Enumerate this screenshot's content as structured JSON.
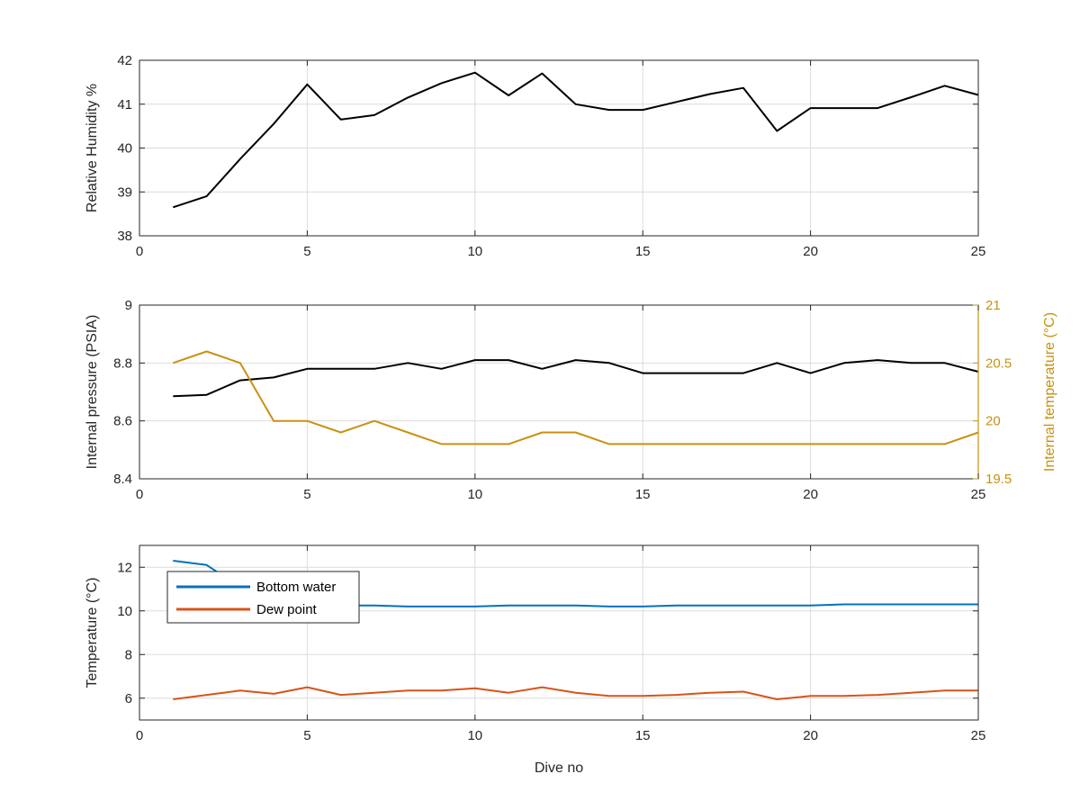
{
  "chart_data": [
    {
      "type": "line",
      "ylabel": "Relative Humidity %",
      "xlim": [
        0,
        25
      ],
      "ylim": [
        38,
        42
      ],
      "x_ticks": [
        "0",
        "5",
        "10",
        "15",
        "20",
        "25"
      ],
      "y_ticks": [
        "38",
        "39",
        "40",
        "41",
        "42"
      ],
      "grid": true,
      "series": [
        {
          "color": "#000000",
          "x": [
            1,
            2,
            3,
            4,
            5,
            6,
            7,
            8,
            9,
            10,
            11,
            12,
            13,
            14,
            15,
            16,
            17,
            18,
            19,
            20,
            21,
            22,
            23,
            24,
            25
          ],
          "values": [
            38.65,
            38.9,
            39.75,
            40.55,
            41.45,
            40.65,
            40.75,
            41.15,
            41.48,
            41.72,
            41.2,
            41.7,
            41.0,
            40.87,
            40.87,
            41.05,
            41.23,
            41.37,
            40.39,
            40.91,
            40.91,
            40.91,
            41.16,
            41.42,
            41.21
          ]
        }
      ]
    },
    {
      "type": "line",
      "ylabel": "Internal pressure (PSIA)",
      "ylabel_right": "Internal temperature (°C)",
      "xlim": [
        0,
        25
      ],
      "ylim": [
        8.4,
        9.0
      ],
      "ylim_right": [
        19.5,
        21
      ],
      "x_ticks": [
        "0",
        "5",
        "10",
        "15",
        "20",
        "25"
      ],
      "y_ticks": [
        "8.4",
        "8.6",
        "8.8",
        "9"
      ],
      "y_ticks_right": [
        "19.5",
        "20",
        "20.5",
        "21"
      ],
      "grid": true,
      "series": [
        {
          "axis": "left",
          "color": "#000000",
          "x": [
            1,
            2,
            3,
            4,
            5,
            6,
            7,
            8,
            9,
            10,
            11,
            12,
            13,
            14,
            15,
            16,
            17,
            18,
            19,
            20,
            21,
            22,
            23,
            24,
            25
          ],
          "values": [
            8.685,
            8.69,
            8.74,
            8.75,
            8.78,
            8.78,
            8.78,
            8.8,
            8.78,
            8.81,
            8.81,
            8.78,
            8.81,
            8.8,
            8.765,
            8.765,
            8.765,
            8.765,
            8.8,
            8.765,
            8.8,
            8.81,
            8.8,
            8.8,
            8.77
          ]
        },
        {
          "axis": "right",
          "color": "#c89210",
          "x": [
            1,
            2,
            3,
            4,
            5,
            6,
            7,
            8,
            9,
            10,
            11,
            12,
            13,
            14,
            15,
            16,
            17,
            18,
            19,
            20,
            21,
            22,
            23,
            24,
            25
          ],
          "values": [
            20.5,
            20.6,
            20.5,
            20.0,
            20.0,
            19.9,
            20.0,
            19.9,
            19.8,
            19.8,
            19.8,
            19.9,
            19.9,
            19.8,
            19.8,
            19.8,
            19.8,
            19.8,
            19.8,
            19.8,
            19.8,
            19.8,
            19.8,
            19.8,
            19.9
          ]
        }
      ]
    },
    {
      "type": "line",
      "xlabel": "Dive no",
      "ylabel": "Temperature (°C)",
      "xlim": [
        0,
        25
      ],
      "ylim": [
        5,
        13
      ],
      "x_ticks": [
        "0",
        "5",
        "10",
        "15",
        "20",
        "25"
      ],
      "y_ticks": [
        "6",
        "8",
        "10",
        "12"
      ],
      "grid": true,
      "legend_position": "top-left",
      "series": [
        {
          "name": "Bottom water",
          "color": "#0072bd",
          "x": [
            1,
            1.5,
            2,
            2.3,
            3,
            4,
            5,
            6,
            7,
            8,
            9,
            10,
            11,
            12,
            13,
            14,
            15,
            16,
            17,
            18,
            19,
            20,
            21,
            22,
            23,
            24,
            25
          ],
          "values": [
            12.3,
            12.2,
            12.1,
            11.8,
            10.9,
            10.5,
            10.3,
            10.25,
            10.25,
            10.2,
            10.2,
            10.2,
            10.25,
            10.25,
            10.25,
            10.2,
            10.2,
            10.25,
            10.25,
            10.25,
            10.25,
            10.25,
            10.3,
            10.3,
            10.3,
            10.3,
            10.3
          ]
        },
        {
          "name": "Dew point",
          "color": "#d95319",
          "x": [
            1,
            2,
            3,
            4,
            5,
            6,
            7,
            8,
            9,
            10,
            11,
            12,
            13,
            14,
            15,
            16,
            17,
            18,
            19,
            20,
            21,
            22,
            23,
            24,
            25
          ],
          "values": [
            5.95,
            6.15,
            6.35,
            6.2,
            6.5,
            6.15,
            6.25,
            6.35,
            6.35,
            6.45,
            6.25,
            6.5,
            6.25,
            6.1,
            6.1,
            6.15,
            6.25,
            6.3,
            5.95,
            6.1,
            6.1,
            6.15,
            6.25,
            6.35,
            6.35
          ]
        }
      ]
    }
  ]
}
